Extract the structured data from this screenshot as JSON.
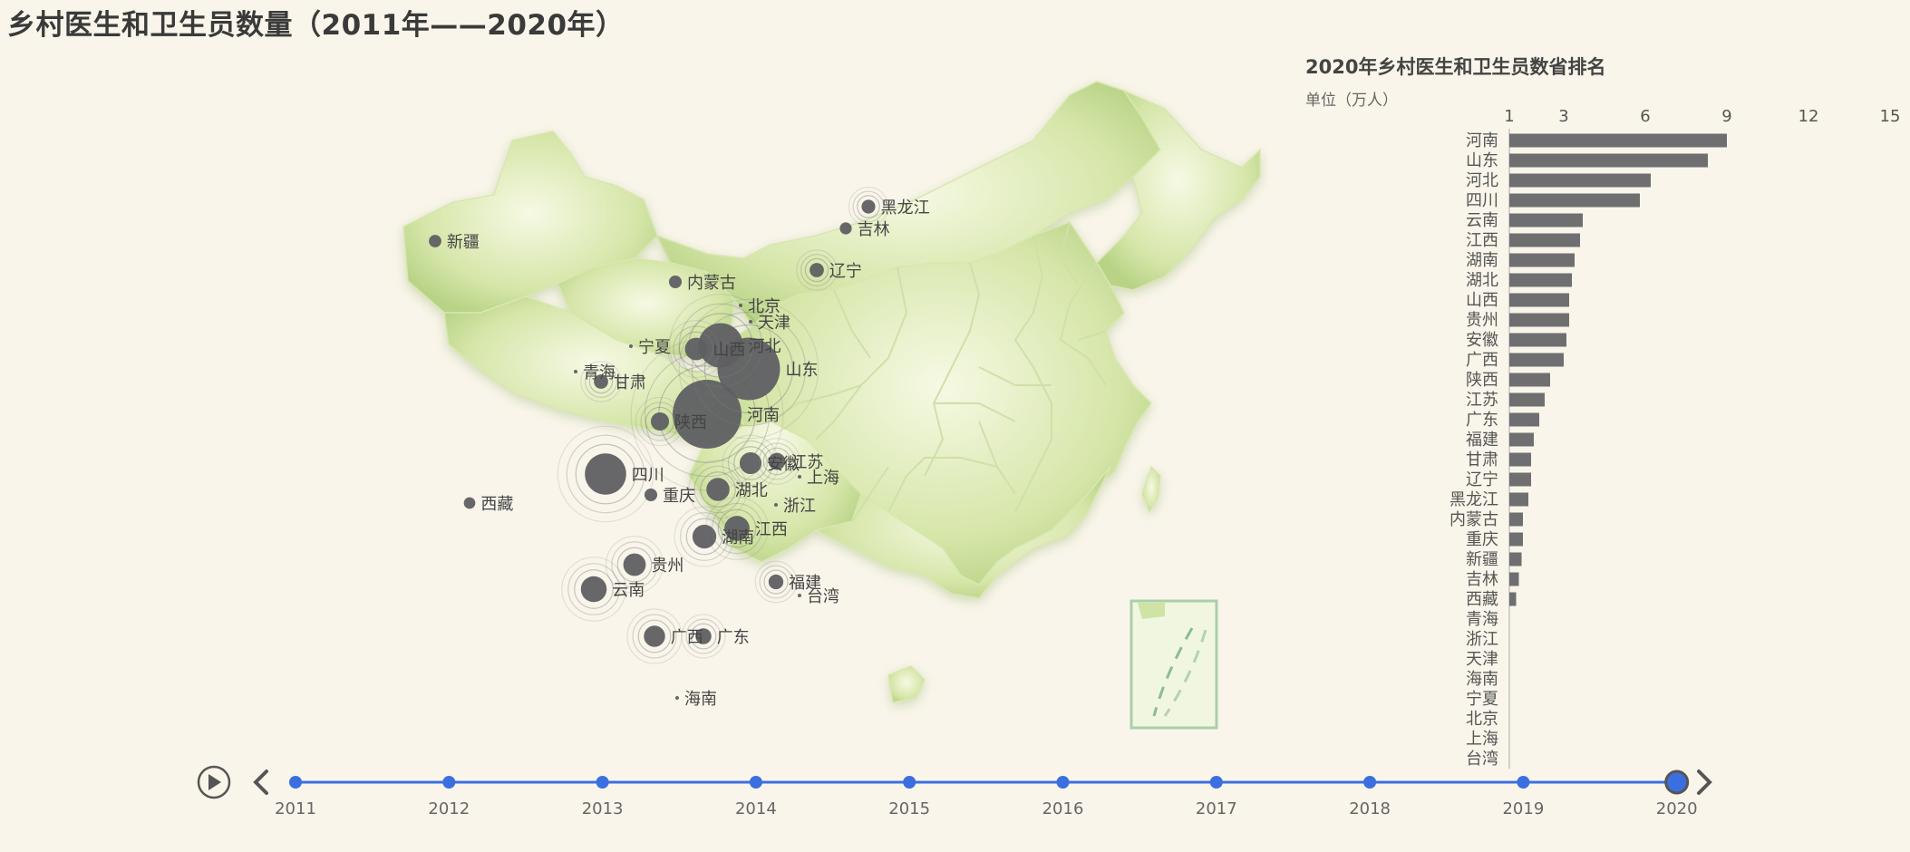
{
  "title": "乡村医生和卫生员数量（2011年——2020年）",
  "ranking": {
    "title": "2020年乡村医生和卫生员数省排名",
    "unit": "单位（万人）"
  },
  "colors": {
    "background": "#f9f5ea",
    "bar": "#6f6f72",
    "bubble": "#5f5f63",
    "timeline": "#3b6fe0",
    "map_light": "#f3f7de",
    "map_dark": "#b9d48c"
  },
  "chart_data": [
    {
      "type": "bar",
      "orientation": "horizontal",
      "title": "2020年乡村医生和卫生员数省排名",
      "unit": "单位（万人）",
      "xlim": [
        1,
        15
      ],
      "xticks": [
        1,
        3,
        6,
        9,
        12,
        15
      ],
      "categories": [
        "河南",
        "山东",
        "河北",
        "四川",
        "云南",
        "江西",
        "湖南",
        "湖北",
        "山西",
        "贵州",
        "安徽",
        "广西",
        "陕西",
        "江苏",
        "广东",
        "福建",
        "甘肃",
        "辽宁",
        "黑龙江",
        "内蒙古",
        "重庆",
        "新疆",
        "吉林",
        "西藏",
        "青海",
        "浙江",
        "天津",
        "海南",
        "宁夏",
        "北京",
        "上海",
        "台湾"
      ],
      "values": [
        9.0,
        8.3,
        6.2,
        5.8,
        3.7,
        3.6,
        3.4,
        3.3,
        3.2,
        3.2,
        3.1,
        3.0,
        2.5,
        2.3,
        2.1,
        1.9,
        1.8,
        1.8,
        1.7,
        1.5,
        1.5,
        1.45,
        1.35,
        1.25,
        0,
        0,
        0,
        0,
        0,
        0,
        0,
        0
      ]
    },
    {
      "type": "scatter",
      "subtype": "geo-bubble",
      "points": [
        {
          "name": "河南",
          "value": 9.0
        },
        {
          "name": "山东",
          "value": 8.3
        },
        {
          "name": "河北",
          "value": 6.2
        },
        {
          "name": "四川",
          "value": 5.8
        },
        {
          "name": "山西",
          "value": 3.2
        },
        {
          "name": "陕西",
          "value": 2.5
        },
        {
          "name": "云南",
          "value": 3.7
        },
        {
          "name": "湖北",
          "value": 3.3
        },
        {
          "name": "湖南",
          "value": 3.4
        },
        {
          "name": "江西",
          "value": 3.6
        },
        {
          "name": "贵州",
          "value": 3.2
        },
        {
          "name": "广西",
          "value": 3.0
        },
        {
          "name": "安徽",
          "value": 3.1
        },
        {
          "name": "江苏",
          "value": 2.3
        },
        {
          "name": "广东",
          "value": 2.1
        },
        {
          "name": "福建",
          "value": 1.9
        },
        {
          "name": "甘肃",
          "value": 1.8
        },
        {
          "name": "辽宁",
          "value": 1.8
        },
        {
          "name": "黑龙江",
          "value": 1.7
        },
        {
          "name": "内蒙古",
          "value": 1.5
        },
        {
          "name": "重庆",
          "value": 1.5
        },
        {
          "name": "新疆",
          "value": 1.45
        },
        {
          "name": "吉林",
          "value": 1.35
        },
        {
          "name": "西藏",
          "value": 1.25
        },
        {
          "name": "青海",
          "value": 0
        },
        {
          "name": "浙江",
          "value": 0
        },
        {
          "name": "天津",
          "value": 0
        },
        {
          "name": "海南",
          "value": 0
        },
        {
          "name": "宁夏",
          "value": 0
        },
        {
          "name": "北京",
          "value": 0
        },
        {
          "name": "上海",
          "value": 0
        },
        {
          "name": "台湾",
          "value": 0
        }
      ]
    }
  ],
  "timeline": {
    "years": [
      "2011",
      "2012",
      "2013",
      "2014",
      "2015",
      "2016",
      "2017",
      "2018",
      "2019",
      "2020"
    ],
    "current": "2020",
    "play_icon": "play-icon",
    "prev_icon": "chevron-left-icon",
    "next_icon": "chevron-right-icon"
  }
}
